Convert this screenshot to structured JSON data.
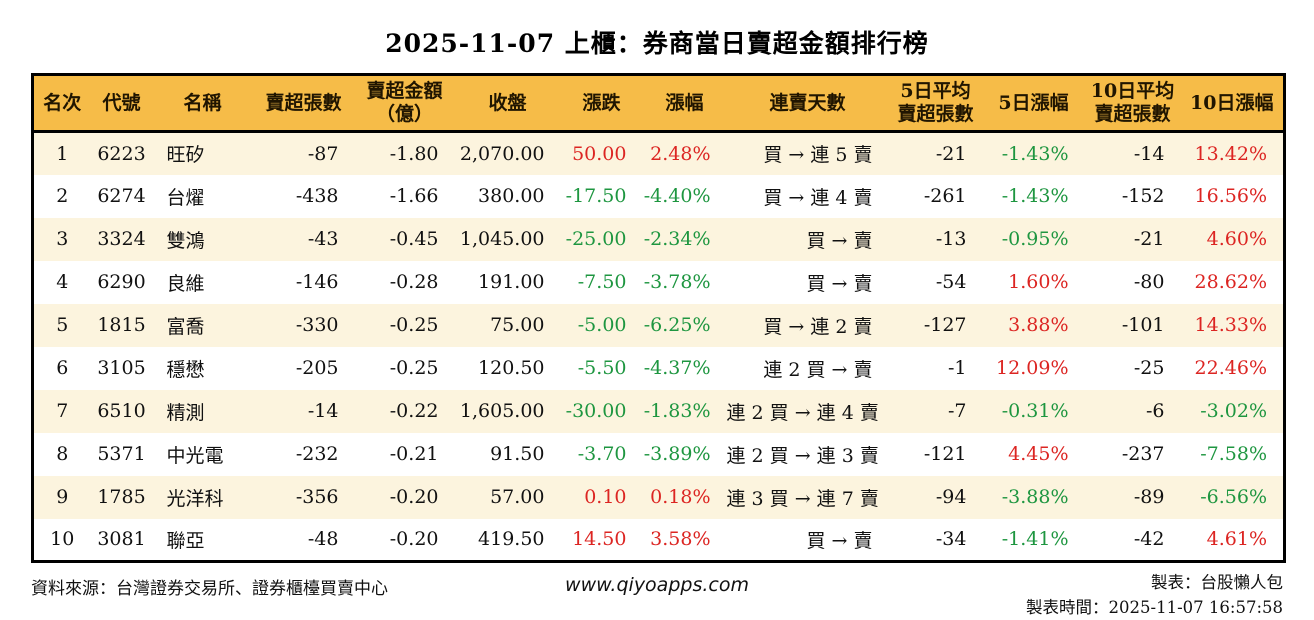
{
  "title": "2025-11-07 上櫃：券商當日賣超金額排行榜",
  "colors": {
    "header_bg": "#F6BC48",
    "row_alt_bg": "#FCF4DE",
    "up_red": "#DC2522",
    "down_green": "#1E9640",
    "border": "#000000"
  },
  "table": {
    "headers": [
      "名次",
      "代號",
      "名稱",
      "賣超張數",
      "賣超金額\n（億）",
      "收盤",
      "漲跌",
      "漲幅",
      "連賣天數",
      "5日平均\n賣超張數",
      "5日漲幅",
      "10日平均\n賣超張數",
      "10日漲幅"
    ],
    "rows": [
      {
        "rank": "1",
        "code": "6223",
        "name": "旺矽",
        "sell_vol": "-87",
        "sell_amt": "-1.80",
        "close": "2,070.00",
        "chg": "50.00",
        "chg_dir": "up",
        "pct": "2.48%",
        "pct_dir": "up",
        "streak": "買 → 連 5 賣",
        "avg5": "-21",
        "pct5": "-1.43%",
        "pct5_dir": "down",
        "avg10": "-14",
        "pct10": "13.42%",
        "pct10_dir": "up"
      },
      {
        "rank": "2",
        "code": "6274",
        "name": "台燿",
        "sell_vol": "-438",
        "sell_amt": "-1.66",
        "close": "380.00",
        "chg": "-17.50",
        "chg_dir": "down",
        "pct": "-4.40%",
        "pct_dir": "down",
        "streak": "買 → 連 4 賣",
        "avg5": "-261",
        "pct5": "-1.43%",
        "pct5_dir": "down",
        "avg10": "-152",
        "pct10": "16.56%",
        "pct10_dir": "up"
      },
      {
        "rank": "3",
        "code": "3324",
        "name": "雙鴻",
        "sell_vol": "-43",
        "sell_amt": "-0.45",
        "close": "1,045.00",
        "chg": "-25.00",
        "chg_dir": "down",
        "pct": "-2.34%",
        "pct_dir": "down",
        "streak": "買 → 賣",
        "avg5": "-13",
        "pct5": "-0.95%",
        "pct5_dir": "down",
        "avg10": "-21",
        "pct10": "4.60%",
        "pct10_dir": "up"
      },
      {
        "rank": "4",
        "code": "6290",
        "name": "良維",
        "sell_vol": "-146",
        "sell_amt": "-0.28",
        "close": "191.00",
        "chg": "-7.50",
        "chg_dir": "down",
        "pct": "-3.78%",
        "pct_dir": "down",
        "streak": "買 → 賣",
        "avg5": "-54",
        "pct5": "1.60%",
        "pct5_dir": "up",
        "avg10": "-80",
        "pct10": "28.62%",
        "pct10_dir": "up"
      },
      {
        "rank": "5",
        "code": "1815",
        "name": "富喬",
        "sell_vol": "-330",
        "sell_amt": "-0.25",
        "close": "75.00",
        "chg": "-5.00",
        "chg_dir": "down",
        "pct": "-6.25%",
        "pct_dir": "down",
        "streak": "買 → 連 2 賣",
        "avg5": "-127",
        "pct5": "3.88%",
        "pct5_dir": "up",
        "avg10": "-101",
        "pct10": "14.33%",
        "pct10_dir": "up"
      },
      {
        "rank": "6",
        "code": "3105",
        "name": "穩懋",
        "sell_vol": "-205",
        "sell_amt": "-0.25",
        "close": "120.50",
        "chg": "-5.50",
        "chg_dir": "down",
        "pct": "-4.37%",
        "pct_dir": "down",
        "streak": "連 2 買 → 賣",
        "avg5": "-1",
        "pct5": "12.09%",
        "pct5_dir": "up",
        "avg10": "-25",
        "pct10": "22.46%",
        "pct10_dir": "up"
      },
      {
        "rank": "7",
        "code": "6510",
        "name": "精測",
        "sell_vol": "-14",
        "sell_amt": "-0.22",
        "close": "1,605.00",
        "chg": "-30.00",
        "chg_dir": "down",
        "pct": "-1.83%",
        "pct_dir": "down",
        "streak": "連 2 買 → 連 4 賣",
        "avg5": "-7",
        "pct5": "-0.31%",
        "pct5_dir": "down",
        "avg10": "-6",
        "pct10": "-3.02%",
        "pct10_dir": "down"
      },
      {
        "rank": "8",
        "code": "5371",
        "name": "中光電",
        "sell_vol": "-232",
        "sell_amt": "-0.21",
        "close": "91.50",
        "chg": "-3.70",
        "chg_dir": "down",
        "pct": "-3.89%",
        "pct_dir": "down",
        "streak": "連 2 買 → 連 3 賣",
        "avg5": "-121",
        "pct5": "4.45%",
        "pct5_dir": "up",
        "avg10": "-237",
        "pct10": "-7.58%",
        "pct10_dir": "down"
      },
      {
        "rank": "9",
        "code": "1785",
        "name": "光洋科",
        "sell_vol": "-356",
        "sell_amt": "-0.20",
        "close": "57.00",
        "chg": "0.10",
        "chg_dir": "up",
        "pct": "0.18%",
        "pct_dir": "up",
        "streak": "連 3 買 → 連 7 賣",
        "avg5": "-94",
        "pct5": "-3.88%",
        "pct5_dir": "down",
        "avg10": "-89",
        "pct10": "-6.56%",
        "pct10_dir": "down"
      },
      {
        "rank": "10",
        "code": "3081",
        "name": "聯亞",
        "sell_vol": "-48",
        "sell_amt": "-0.20",
        "close": "419.50",
        "chg": "14.50",
        "chg_dir": "up",
        "pct": "3.58%",
        "pct_dir": "up",
        "streak": "買 → 賣",
        "avg5": "-34",
        "pct5": "-1.41%",
        "pct5_dir": "down",
        "avg10": "-42",
        "pct10": "4.61%",
        "pct10_dir": "up"
      }
    ]
  },
  "footer": {
    "source": "資料來源：台灣證券交易所、證券櫃檯買賣中心",
    "site": "www.qiyoapps.com",
    "maker": "製表：台股懶人包",
    "made_time": "製表時間：2025-11-07 16:57:58"
  }
}
